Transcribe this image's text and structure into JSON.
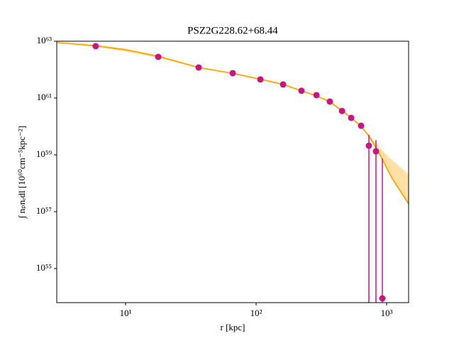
{
  "chart_data": {
    "type": "scatter",
    "title": "PSZ2G228.62+68.44",
    "x_label": "r [kpc]",
    "y_label": "∫ nₚnₑdl [10⁶⁰cm⁻⁵kpc⁻²]",
    "xscale": "log",
    "yscale": "log",
    "xlim": [
      2.97,
      1473
    ],
    "ylim": [
      6.3e+53,
      1e+63
    ],
    "xticks": [
      {
        "value": 10,
        "label": "10¹"
      },
      {
        "value": 100,
        "label": "10²"
      },
      {
        "value": 1000,
        "label": "10³"
      }
    ],
    "yticks": [
      {
        "value": 1e+55,
        "label": "10⁵⁵"
      },
      {
        "value": 1e+57,
        "label": "10⁵⁷"
      },
      {
        "value": 1e+59,
        "label": "10⁵⁹"
      },
      {
        "value": 1e+61,
        "label": "10⁶¹"
      },
      {
        "value": 1e+63,
        "label": "10⁶³"
      }
    ],
    "color": "#c71585",
    "x": [
      5.9,
      17.8,
      36.3,
      66.2,
      107.8,
      161,
      222.6,
      290,
      367,
      455,
      535,
      637,
      731,
      828,
      927
    ],
    "values": [
      6.7e+62,
      2.8e+62,
      1.19e+62,
      7.5e+61,
      4.5e+61,
      3e+61,
      1.8e+61,
      1.26e+61,
      7.5e+60,
      3.5e+60,
      2e+60,
      1.06e+60,
      2.1e+59,
      1.33e+59,
      8.9e+53
    ],
    "errors": [
      2e+61,
      8e+60,
      3e+60,
      1.5e+60,
      9e+59,
      6e+59,
      4e+59,
      3e+59,
      2e+59,
      1e+59,
      6e+58,
      4e+58,
      2.9e+59,
      2e+59,
      7.5e+58
    ],
    "model": {
      "color": "#ffa500",
      "band_color": "#ffd58a",
      "x": [
        3,
        6,
        10,
        18,
        36,
        66,
        108,
        161,
        223,
        290,
        367,
        455,
        535,
        637,
        731,
        828,
        927,
        1100,
        1473
      ],
      "values": [
        8.9e+62,
        6.9e+62,
        5e+62,
        2.9e+62,
        1.2e+62,
        7.4e+61,
        4.6e+61,
        3e+61,
        1.8e+61,
        1.2e+61,
        7.3e+60,
        3.6e+60,
        2e+60,
        1e+60,
        4.6e+59,
        1.8e+59,
        7e+58,
        1.5e+58,
        1.9e+57
      ],
      "lower": [
        8.8e+62,
        6.2e+62,
        4.3e+62,
        2.6e+62,
        1.15e+62,
        7.1e+61,
        4.4e+61,
        2.9e+61,
        1.75e+61,
        1.15e+61,
        7e+60,
        3.4e+60,
        1.9e+60,
        9.5e+59,
        4.3e+59,
        1.7e+59,
        6.5e+58,
        1.4e+58,
        1.9e+57
      ],
      "upper": [
        9e+62,
        7.3e+62,
        5.4e+62,
        3.1e+62,
        1.25e+62,
        7.7e+61,
        4.8e+61,
        3.1e+61,
        1.85e+61,
        1.25e+61,
        7.6e+60,
        3.8e+60,
        2.15e+60,
        1.1e+60,
        5.3e+59,
        2.6e+59,
        1.4e+59,
        6.5e+58,
        2.1e+58
      ]
    }
  }
}
